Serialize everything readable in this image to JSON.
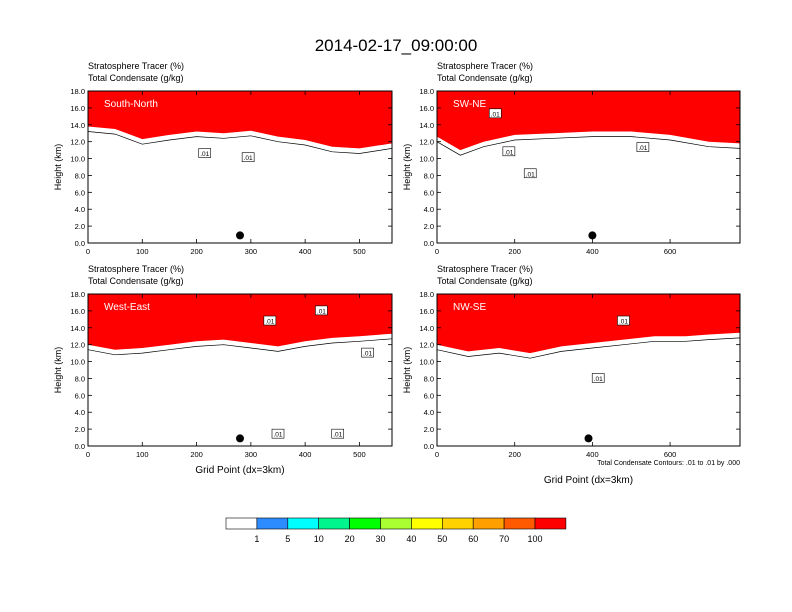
{
  "figure_title": "2014-02-17_09:00:00",
  "colors": {
    "red": "#ff0000",
    "orange_red": "#ff5a00",
    "orange": "#ffa000",
    "gold": "#ffd200",
    "yellow": "#ffff00",
    "yellow_green": "#aaff32",
    "green": "#00ff00",
    "spring_green": "#00f58c",
    "cyan": "#00ffff",
    "blue": "#2d8cff",
    "contour": "#000000"
  },
  "chart_data": [
    {
      "type": "heatmap",
      "title_line1": "Stratosphere Tracer   (%)",
      "title_line2": "Total Condensate   (g/kg)",
      "label": "South-North",
      "ylabel": "Height (km)",
      "xlabel": "",
      "xlim": [
        0,
        560
      ],
      "ylim": [
        0,
        18
      ],
      "xticks": [
        0,
        100,
        200,
        300,
        400,
        500
      ],
      "yticks": [
        "0.0",
        "2.0",
        "4.0",
        "6.0",
        "8.0",
        "10.0",
        "12.0",
        "14.0",
        "16.0",
        "18.0"
      ],
      "contour_labels": [
        {
          "x": 215,
          "y": 10.6,
          "text": ".01"
        },
        {
          "x": 295,
          "y": 10.1,
          "text": ".01"
        }
      ],
      "surface_marker_x": 280,
      "cloud_top": [
        {
          "x": 0,
          "y": 13.8
        },
        {
          "x": 50,
          "y": 13.5
        },
        {
          "x": 100,
          "y": 12.3
        },
        {
          "x": 150,
          "y": 12.8
        },
        {
          "x": 200,
          "y": 13.2
        },
        {
          "x": 250,
          "y": 13.0
        },
        {
          "x": 300,
          "y": 13.3
        },
        {
          "x": 350,
          "y": 12.6
        },
        {
          "x": 400,
          "y": 12.2
        },
        {
          "x": 450,
          "y": 11.4
        },
        {
          "x": 500,
          "y": 11.2
        },
        {
          "x": 560,
          "y": 11.8
        }
      ]
    },
    {
      "type": "heatmap",
      "title_line1": "Stratosphere Tracer   (%)",
      "title_line2": "Total Condensate   (g/kg)",
      "label": "SW-NE",
      "ylabel": "Height (km)",
      "xlabel": "",
      "xlim": [
        0,
        780
      ],
      "ylim": [
        0,
        18
      ],
      "xticks": [
        0,
        200,
        400,
        600
      ],
      "yticks": [
        "0.0",
        "2.0",
        "4.0",
        "6.0",
        "8.0",
        "10.0",
        "12.0",
        "14.0",
        "16.0",
        "18.0"
      ],
      "contour_labels": [
        {
          "x": 150,
          "y": 15.3,
          "text": ".01"
        },
        {
          "x": 185,
          "y": 10.8,
          "text": ".01"
        },
        {
          "x": 240,
          "y": 8.2,
          "text": ".01"
        },
        {
          "x": 530,
          "y": 11.3,
          "text": ".01"
        }
      ],
      "surface_marker_x": 400,
      "cloud_top": [
        {
          "x": 0,
          "y": 12.6
        },
        {
          "x": 60,
          "y": 11.0
        },
        {
          "x": 120,
          "y": 12.0
        },
        {
          "x": 200,
          "y": 12.8
        },
        {
          "x": 300,
          "y": 13.0
        },
        {
          "x": 400,
          "y": 13.2
        },
        {
          "x": 500,
          "y": 13.2
        },
        {
          "x": 600,
          "y": 12.8
        },
        {
          "x": 700,
          "y": 12.0
        },
        {
          "x": 780,
          "y": 11.8
        }
      ]
    },
    {
      "type": "heatmap",
      "title_line1": "Stratosphere Tracer   (%)",
      "title_line2": "Total Condensate   (g/kg)",
      "label": "West-East",
      "ylabel": "Height (km)",
      "xlabel": "Grid Point (dx=3km)",
      "xlim": [
        0,
        560
      ],
      "ylim": [
        0,
        18
      ],
      "xticks": [
        0,
        100,
        200,
        300,
        400,
        500
      ],
      "yticks": [
        "0.0",
        "2.0",
        "4.0",
        "6.0",
        "8.0",
        "10.0",
        "12.0",
        "14.0",
        "16.0",
        "18.0"
      ],
      "contour_labels": [
        {
          "x": 335,
          "y": 14.8,
          "text": ".01"
        },
        {
          "x": 430,
          "y": 16.0,
          "text": ".01"
        },
        {
          "x": 515,
          "y": 11.0,
          "text": ".01"
        },
        {
          "x": 350,
          "y": 1.4,
          "text": ".01"
        },
        {
          "x": 460,
          "y": 1.4,
          "text": ".01"
        }
      ],
      "surface_marker_x": 280,
      "cloud_top": [
        {
          "x": 0,
          "y": 12.0
        },
        {
          "x": 50,
          "y": 11.4
        },
        {
          "x": 100,
          "y": 11.6
        },
        {
          "x": 150,
          "y": 12.0
        },
        {
          "x": 200,
          "y": 12.4
        },
        {
          "x": 250,
          "y": 12.6
        },
        {
          "x": 300,
          "y": 12.2
        },
        {
          "x": 350,
          "y": 11.8
        },
        {
          "x": 400,
          "y": 12.4
        },
        {
          "x": 450,
          "y": 12.8
        },
        {
          "x": 500,
          "y": 13.0
        },
        {
          "x": 560,
          "y": 13.3
        }
      ]
    },
    {
      "type": "heatmap",
      "title_line1": "Stratosphere Tracer   (%)",
      "title_line2": "Total Condensate   (g/kg)",
      "label": "NW-SE",
      "ylabel": "Height (km)",
      "xlabel": "Grid Point (dx=3km)",
      "xlim": [
        0,
        780
      ],
      "ylim": [
        0,
        18
      ],
      "xticks": [
        0,
        200,
        400,
        600
      ],
      "yticks": [
        "0.0",
        "2.0",
        "4.0",
        "6.0",
        "8.0",
        "10.0",
        "12.0",
        "14.0",
        "16.0",
        "18.0"
      ],
      "contour_labels": [
        {
          "x": 480,
          "y": 14.8,
          "text": ".01"
        },
        {
          "x": 415,
          "y": 8.0,
          "text": ".01"
        }
      ],
      "footnote": "Total Condensate Contours: .01 to .01 by .000",
      "surface_marker_x": 390,
      "cloud_top": [
        {
          "x": 0,
          "y": 12.0
        },
        {
          "x": 80,
          "y": 11.2
        },
        {
          "x": 160,
          "y": 11.6
        },
        {
          "x": 240,
          "y": 11.0
        },
        {
          "x": 320,
          "y": 11.8
        },
        {
          "x": 400,
          "y": 12.2
        },
        {
          "x": 480,
          "y": 12.6
        },
        {
          "x": 560,
          "y": 13.0
        },
        {
          "x": 640,
          "y": 13.0
        },
        {
          "x": 700,
          "y": 13.2
        },
        {
          "x": 780,
          "y": 13.4
        }
      ]
    }
  ],
  "colorbar": {
    "labels": [
      "1",
      "5",
      "10",
      "20",
      "30",
      "40",
      "50",
      "60",
      "70",
      "100"
    ],
    "segments": [
      "#ffffff",
      "#2d8cff",
      "#00ffff",
      "#00f58c",
      "#00ff00",
      "#aaff32",
      "#ffff00",
      "#ffd200",
      "#ffa000",
      "#ff5a00",
      "#ff0000"
    ]
  }
}
